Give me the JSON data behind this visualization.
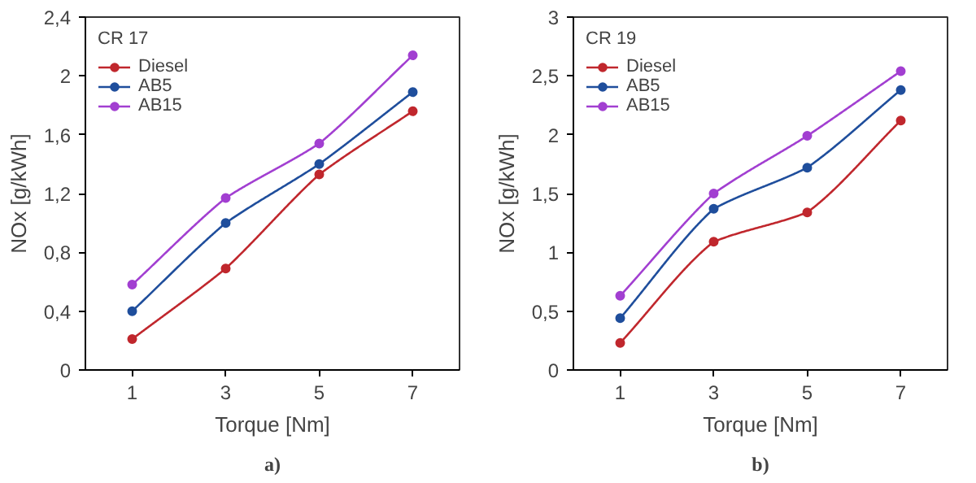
{
  "chart_data": [
    {
      "type": "line",
      "xlabel": "Torque [Nm]",
      "ylabel": "NOx [g/kWh]",
      "legend_title": "CR 17",
      "legend": "top left",
      "marker": "circle",
      "line_style": "solid",
      "grid": false,
      "annotations": [
        "a)"
      ],
      "x": [
        1,
        3,
        5,
        7
      ],
      "xlim": [
        0,
        8
      ],
      "xticks": [
        1,
        3,
        5,
        7
      ],
      "ylim": [
        0,
        2.4
      ],
      "yticks": [
        0,
        {
          "value": 0.4,
          "label": "0,4"
        },
        {
          "value": 0.8,
          "label": "0,8"
        },
        {
          "value": 1.2,
          "label": "1,2"
        },
        {
          "value": 1.6,
          "label": "1,6"
        },
        2,
        {
          "value": 2.4,
          "label": "2,4"
        }
      ],
      "series": [
        {
          "name": "Diesel",
          "color": "#c0272d",
          "values": [
            0.21,
            0.69,
            1.33,
            1.76
          ]
        },
        {
          "name": "AB5",
          "color": "#1f4e9c",
          "values": [
            0.4,
            1.0,
            1.4,
            1.89
          ]
        },
        {
          "name": "AB15",
          "color": "#a23fd1",
          "values": [
            0.58,
            1.17,
            1.54,
            2.14
          ]
        }
      ]
    },
    {
      "type": "line",
      "xlabel": "Torque [Nm]",
      "ylabel": "NOx [g/kWh]",
      "legend_title": "CR 19",
      "legend": "top left",
      "marker": "circle",
      "line_style": "solid",
      "grid": false,
      "annotations": [
        "b)"
      ],
      "x": [
        1,
        3,
        5,
        7
      ],
      "xlim": [
        0,
        8
      ],
      "xticks": [
        1,
        3,
        5,
        7
      ],
      "ylim": [
        0,
        3
      ],
      "yticks": [
        0,
        {
          "value": 0.5,
          "label": "0,5"
        },
        1,
        {
          "value": 1.5,
          "label": "1,5"
        },
        2,
        {
          "value": 2.5,
          "label": "2,5"
        },
        3
      ],
      "series": [
        {
          "name": "Diesel",
          "color": "#c0272d",
          "values": [
            0.23,
            1.09,
            1.34,
            2.12
          ]
        },
        {
          "name": "AB5",
          "color": "#1f4e9c",
          "values": [
            0.44,
            1.37,
            1.72,
            2.38
          ]
        },
        {
          "name": "AB15",
          "color": "#a23fd1",
          "values": [
            0.63,
            1.5,
            1.99,
            2.54
          ]
        }
      ]
    }
  ]
}
